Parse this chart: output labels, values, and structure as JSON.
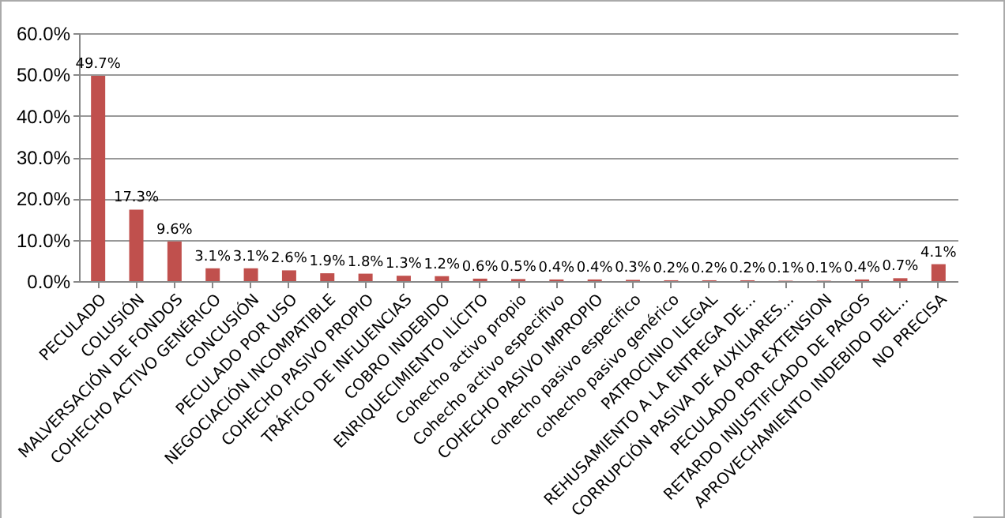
{
  "chart_data": {
    "type": "bar",
    "categories": [
      "PECULADO",
      "COLUSIÓN",
      "MALVERSACIÓN DE FONDOS",
      "COHECHO ACTIVO GENÉRICO",
      "CONCUSIÓN",
      "PECULADO POR USO",
      "NEGOCIACIÓN INCOMPATIBLE",
      "COHECHO PASIVO PROPIO",
      "TRÁFICO DE INFLUENCIAS",
      "COBRO INDEBIDO",
      "ENRIQUECIMIENTO ILÍCITO",
      "Cohecho activo propio",
      "Cohecho activo especifivo",
      "COHECHO PASIVO IMPROPIO",
      "cohecho  pasivo especifico",
      "cohecho  pasivo genérico",
      "PATROCINIO ILEGAL",
      "REHUSAMIENTO A LA ENTREGA DE...",
      "CORRUPCIÓN PASIVA DE AUXILIARES...",
      "PECULADO POR EXTENSION",
      "RETARDO INJUSTIFICADO DE PAGOS",
      "APROVECHAMIENTO INDEBIDO DEL...",
      "NO PRECISA"
    ],
    "values": [
      49.7,
      17.3,
      9.6,
      3.1,
      3.1,
      2.6,
      1.9,
      1.8,
      1.3,
      1.2,
      0.6,
      0.5,
      0.4,
      0.4,
      0.3,
      0.2,
      0.2,
      0.2,
      0.1,
      0.1,
      0.4,
      0.7,
      4.1
    ],
    "value_labels": [
      "49.7%",
      "17.3%",
      "9.6%",
      "3.1%",
      "3.1%",
      "2.6%",
      "1.9%",
      "1.8%",
      "1.3%",
      "1.2%",
      "0.6%",
      "0.5%",
      "0.4%",
      "0.4%",
      "0.3%",
      "0.2%",
      "0.2%",
      "0.2%",
      "0.1%",
      "0.1%",
      "0.4%",
      "0.7%",
      "4.1%"
    ],
    "color": "#c0504d",
    "ylim": [
      0,
      60
    ],
    "yticks": [
      {
        "value": 0,
        "label": "0.0%"
      },
      {
        "value": 10,
        "label": "10.0%"
      },
      {
        "value": 20,
        "label": "20.0%"
      },
      {
        "value": 30,
        "label": "30.0%"
      },
      {
        "value": 40,
        "label": "40.0%"
      },
      {
        "value": 50,
        "label": "50.0%"
      },
      {
        "value": 60,
        "label": "60.0%"
      }
    ],
    "grid": "y"
  }
}
